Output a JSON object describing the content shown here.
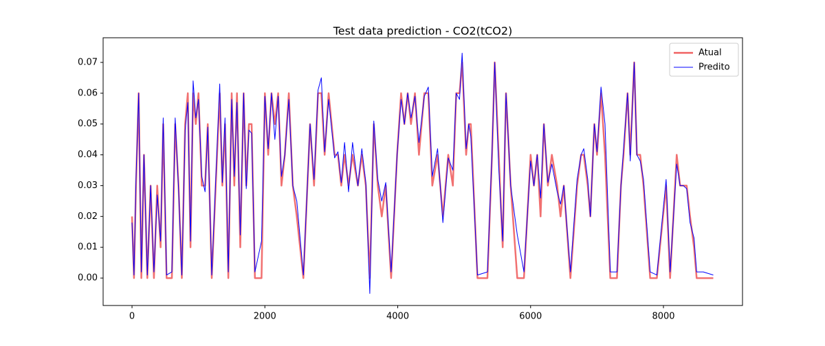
{
  "chart_data": {
    "type": "line",
    "title": "Test data prediction - CO2(tCO2)",
    "x": [
      0,
      30,
      60,
      100,
      140,
      180,
      230,
      280,
      330,
      380,
      430,
      470,
      520,
      600,
      650,
      700,
      750,
      800,
      840,
      880,
      920,
      960,
      1000,
      1050,
      1100,
      1140,
      1200,
      1320,
      1360,
      1400,
      1450,
      1500,
      1540,
      1580,
      1630,
      1680,
      1720,
      1760,
      1800,
      1850,
      1950,
      2000,
      2050,
      2100,
      2150,
      2200,
      2250,
      2300,
      2360,
      2420,
      2480,
      2580,
      2680,
      2740,
      2800,
      2850,
      2900,
      2960,
      3050,
      3100,
      3150,
      3200,
      3260,
      3320,
      3400,
      3460,
      3520,
      3580,
      3640,
      3700,
      3760,
      3820,
      3900,
      3990,
      4050,
      4100,
      4150,
      4200,
      4260,
      4320,
      4400,
      4460,
      4520,
      4600,
      4680,
      4760,
      4830,
      4880,
      4930,
      4970,
      5030,
      5070,
      5100,
      5200,
      5350,
      5420,
      5460,
      5520,
      5580,
      5630,
      5700,
      5800,
      5900,
      6000,
      6050,
      6100,
      6150,
      6200,
      6260,
      6320,
      6400,
      6450,
      6500,
      6600,
      6700,
      6760,
      6800,
      6860,
      6900,
      6960,
      7000,
      7060,
      7120,
      7200,
      7300,
      7360,
      7400,
      7460,
      7500,
      7560,
      7600,
      7650,
      7700,
      7800,
      7900,
      8040,
      8100,
      8200,
      8250,
      8300,
      8350,
      8400,
      8460,
      8500,
      8600,
      8750
    ],
    "series": [
      {
        "name": "Atual",
        "color": "#f06060",
        "width": 2.5,
        "values": [
          0.02,
          0,
          0.03,
          0.06,
          0,
          0.04,
          0,
          0.03,
          0,
          0.03,
          0.01,
          0.05,
          0,
          0,
          0.05,
          0.03,
          0,
          0.05,
          0.06,
          0.01,
          0.06,
          0.05,
          0.06,
          0.03,
          0.03,
          0.05,
          0,
          0.06,
          0.03,
          0.05,
          0,
          0.06,
          0.03,
          0.06,
          0.01,
          0.06,
          0.03,
          0.05,
          0.05,
          0,
          0,
          0.06,
          0.04,
          0.06,
          0.05,
          0.06,
          0.03,
          0.04,
          0.06,
          0.03,
          0.02,
          0,
          0.05,
          0.03,
          0.06,
          0.06,
          0.04,
          0.06,
          0.04,
          0.04,
          0.03,
          0.04,
          0.03,
          0.04,
          0.03,
          0.04,
          0.03,
          0,
          0.05,
          0.03,
          0.02,
          0.03,
          0,
          0.04,
          0.06,
          0.05,
          0.06,
          0.05,
          0.06,
          0.04,
          0.06,
          0.06,
          0.03,
          0.04,
          0.02,
          0.04,
          0.03,
          0.06,
          0.06,
          0.07,
          0.04,
          0.05,
          0.05,
          0,
          0,
          0.04,
          0.07,
          0.04,
          0.01,
          0.06,
          0.03,
          0,
          0,
          0.04,
          0.03,
          0.04,
          0.02,
          0.05,
          0.03,
          0.04,
          0.03,
          0.02,
          0.03,
          0,
          0.03,
          0.04,
          0.04,
          0.03,
          0.02,
          0.05,
          0.04,
          0.06,
          0.04,
          0,
          0,
          0.03,
          0.04,
          0.06,
          0.04,
          0.07,
          0.04,
          0.04,
          0.03,
          0,
          0,
          0.03,
          0,
          0.04,
          0.03,
          0.03,
          0.03,
          0.02,
          0.01,
          0,
          0,
          0
        ]
      },
      {
        "name": "Predito",
        "color": "#0000ff",
        "width": 1,
        "values": [
          0.018,
          0.001,
          0.032,
          0.06,
          0.002,
          0.04,
          0.001,
          0.03,
          0.002,
          0.027,
          0.012,
          0.052,
          0.001,
          0.002,
          0.052,
          0.029,
          0.001,
          0.048,
          0.057,
          0.012,
          0.064,
          0.052,
          0.058,
          0.033,
          0.028,
          0.049,
          0.001,
          0.063,
          0.031,
          0.052,
          0.002,
          0.058,
          0.033,
          0.057,
          0.014,
          0.06,
          0.029,
          0.048,
          0.047,
          0.002,
          0.012,
          0.059,
          0.042,
          0.06,
          0.045,
          0.059,
          0.033,
          0.04,
          0.058,
          0.03,
          0.025,
          0.001,
          0.05,
          0.032,
          0.061,
          0.065,
          0.041,
          0.058,
          0.039,
          0.041,
          0.031,
          0.044,
          0.028,
          0.044,
          0.03,
          0.042,
          0.031,
          -0.005,
          0.051,
          0.032,
          0.025,
          0.031,
          0.002,
          0.04,
          0.058,
          0.05,
          0.06,
          0.052,
          0.059,
          0.044,
          0.059,
          0.062,
          0.033,
          0.042,
          0.018,
          0.039,
          0.035,
          0.06,
          0.058,
          0.073,
          0.042,
          0.05,
          0.046,
          0.001,
          0.002,
          0.041,
          0.07,
          0.036,
          0.012,
          0.06,
          0.03,
          0.014,
          0.002,
          0.038,
          0.03,
          0.04,
          0.026,
          0.05,
          0.031,
          0.037,
          0.028,
          0.024,
          0.03,
          0.002,
          0.032,
          0.04,
          0.042,
          0.032,
          0.02,
          0.05,
          0.041,
          0.062,
          0.05,
          0.002,
          0.002,
          0.03,
          0.042,
          0.06,
          0.038,
          0.07,
          0.04,
          0.038,
          0.032,
          0.002,
          0.001,
          0.032,
          0.002,
          0.037,
          0.03,
          0.03,
          0.029,
          0.018,
          0.013,
          0.002,
          0.002,
          0.001
        ]
      }
    ],
    "xlim": [
      -435,
      9190
    ],
    "ylim": [
      -0.0089,
      0.078
    ],
    "xticks": [
      0,
      2000,
      4000,
      6000,
      8000
    ],
    "yticks": [
      {
        "value": 0,
        "label": "0.00"
      },
      0.01,
      0.02,
      0.03,
      0.04,
      0.05,
      0.06,
      0.07
    ],
    "legend": "upper right"
  }
}
